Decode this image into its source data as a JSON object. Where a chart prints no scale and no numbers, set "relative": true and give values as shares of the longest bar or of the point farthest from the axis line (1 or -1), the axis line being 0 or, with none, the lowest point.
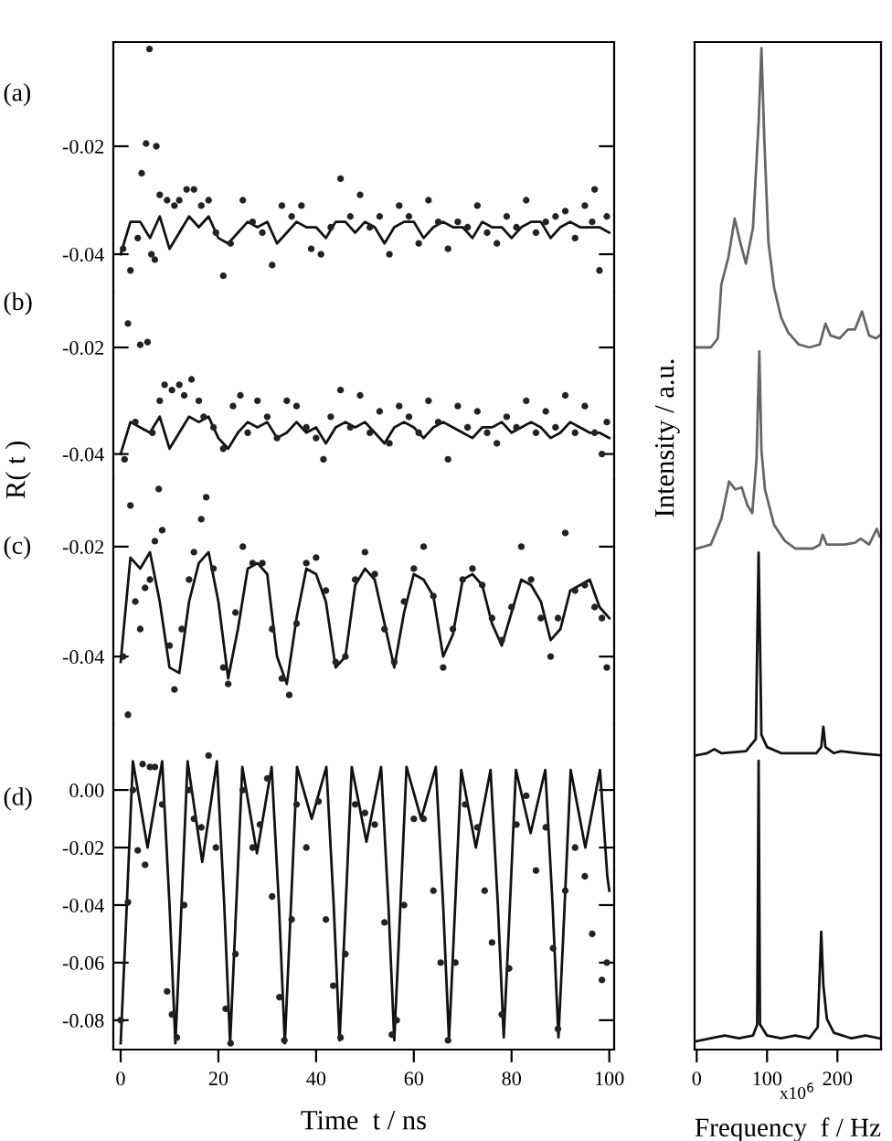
{
  "chart_data": [
    {
      "type": "scatter",
      "annotations": [
        "(a)"
      ],
      "xlim": [
        -1.5,
        101
      ],
      "ylim": [
        -0.0471,
        -0.0007
      ],
      "yticks": [
        {
          "value": -0.02,
          "label": "-0.02"
        },
        {
          "value": -0.04,
          "label": "-0.04"
        }
      ],
      "tick_labels": "y",
      "series": [
        {
          "type": "scatter",
          "marker": "circle",
          "color": "#222222",
          "x": [
            0.5,
            2,
            3.5,
            4.3,
            5.2,
            5.9,
            6.3,
            7,
            7.3,
            8,
            9.5,
            11,
            12,
            13.5,
            15,
            16.5,
            18,
            19.5,
            21,
            22.5,
            25,
            27,
            29,
            31,
            33,
            35,
            37,
            39,
            41,
            43,
            45,
            47,
            49,
            51,
            53,
            55,
            57,
            59,
            61,
            63,
            65,
            67,
            69,
            71,
            73,
            75,
            77,
            79,
            81,
            83,
            85,
            87,
            89,
            91,
            93,
            95,
            96.5,
            97,
            98,
            99.5
          ],
          "values": [
            -0.039,
            -0.043,
            -0.037,
            -0.025,
            -0.0195,
            -0.002,
            -0.04,
            -0.041,
            -0.02,
            -0.029,
            -0.03,
            -0.031,
            -0.03,
            -0.028,
            -0.028,
            -0.031,
            -0.03,
            -0.036,
            -0.044,
            -0.038,
            -0.03,
            -0.034,
            -0.036,
            -0.042,
            -0.031,
            -0.033,
            -0.031,
            -0.039,
            -0.04,
            -0.035,
            -0.026,
            -0.033,
            -0.029,
            -0.035,
            -0.033,
            -0.04,
            -0.031,
            -0.033,
            -0.038,
            -0.03,
            -0.034,
            -0.039,
            -0.034,
            -0.035,
            -0.031,
            -0.036,
            -0.038,
            -0.033,
            -0.035,
            -0.03,
            -0.036,
            -0.034,
            -0.033,
            -0.032,
            -0.037,
            -0.031,
            -0.034,
            -0.028,
            -0.043,
            -0.033
          ]
        },
        {
          "type": "line",
          "color": "#111111",
          "x": [
            0,
            2,
            4,
            6,
            8,
            10,
            12,
            14,
            16,
            18,
            20,
            22,
            24,
            26,
            28,
            30,
            32,
            34,
            36,
            38,
            40,
            42,
            44,
            46,
            48,
            50,
            52,
            54,
            56,
            58,
            60,
            62,
            64,
            66,
            68,
            70,
            72,
            74,
            76,
            78,
            80,
            82,
            84,
            86,
            88,
            90,
            92,
            94,
            96,
            98,
            100
          ],
          "values": [
            -0.04,
            -0.034,
            -0.034,
            -0.037,
            -0.033,
            -0.039,
            -0.036,
            -0.033,
            -0.035,
            -0.033,
            -0.037,
            -0.038,
            -0.036,
            -0.034,
            -0.035,
            -0.034,
            -0.038,
            -0.036,
            -0.034,
            -0.035,
            -0.035,
            -0.037,
            -0.034,
            -0.034,
            -0.036,
            -0.034,
            -0.035,
            -0.038,
            -0.035,
            -0.034,
            -0.034,
            -0.037,
            -0.035,
            -0.034,
            -0.035,
            -0.035,
            -0.037,
            -0.034,
            -0.035,
            -0.035,
            -0.037,
            -0.035,
            -0.034,
            -0.034,
            -0.037,
            -0.035,
            -0.034,
            -0.035,
            -0.035,
            -0.035,
            -0.036
          ]
        }
      ]
    },
    {
      "type": "scatter",
      "annotations": [
        "(b)"
      ],
      "ylabel": "R( t )",
      "xlim": [
        -1.5,
        101
      ],
      "ylim": [
        -0.0447,
        -0.0097
      ],
      "yticks": [
        {
          "value": -0.02,
          "label": "-0.02"
        },
        {
          "value": -0.04,
          "label": "-0.04"
        }
      ],
      "tick_labels": "y",
      "series": [
        {
          "type": "scatter",
          "marker": "circle",
          "color": "#222222",
          "x": [
            0.8,
            1.5,
            3,
            4,
            5.5,
            6.5,
            8,
            9,
            10.5,
            12,
            13,
            14.5,
            16,
            17,
            19,
            21,
            23,
            24.5,
            26,
            28,
            30,
            32,
            34,
            36,
            38,
            40,
            41.5,
            43,
            45,
            47,
            49,
            51,
            53,
            55,
            57,
            59,
            61,
            63,
            65,
            67,
            69,
            71,
            73,
            75,
            77,
            79,
            81,
            83,
            85,
            87,
            89,
            91,
            93,
            95,
            97,
            98.5,
            99.5
          ],
          "values": [
            -0.041,
            -0.0155,
            -0.034,
            -0.0195,
            -0.019,
            -0.036,
            -0.03,
            -0.027,
            -0.028,
            -0.027,
            -0.029,
            -0.026,
            -0.03,
            -0.033,
            -0.035,
            -0.039,
            -0.031,
            -0.029,
            -0.036,
            -0.03,
            -0.033,
            -0.037,
            -0.03,
            -0.031,
            -0.035,
            -0.037,
            -0.041,
            -0.033,
            -0.028,
            -0.035,
            -0.029,
            -0.036,
            -0.032,
            -0.038,
            -0.031,
            -0.033,
            -0.036,
            -0.03,
            -0.034,
            -0.041,
            -0.031,
            -0.035,
            -0.032,
            -0.036,
            -0.038,
            -0.033,
            -0.035,
            -0.03,
            -0.036,
            -0.032,
            -0.035,
            -0.029,
            -0.036,
            -0.031,
            -0.036,
            -0.04,
            -0.034
          ]
        },
        {
          "type": "line",
          "color": "#111111",
          "x": [
            0,
            2,
            4,
            6,
            8,
            10,
            12,
            14,
            16,
            18,
            20,
            22,
            24,
            26,
            28,
            30,
            32,
            34,
            36,
            38,
            40,
            42,
            44,
            46,
            48,
            50,
            52,
            54,
            56,
            58,
            60,
            62,
            64,
            66,
            68,
            70,
            72,
            74,
            76,
            78,
            80,
            82,
            84,
            86,
            88,
            90,
            92,
            94,
            96,
            98,
            100
          ],
          "values": [
            -0.04,
            -0.034,
            -0.035,
            -0.036,
            -0.033,
            -0.039,
            -0.036,
            -0.033,
            -0.034,
            -0.033,
            -0.037,
            -0.039,
            -0.036,
            -0.034,
            -0.035,
            -0.034,
            -0.037,
            -0.036,
            -0.034,
            -0.036,
            -0.035,
            -0.038,
            -0.035,
            -0.034,
            -0.035,
            -0.034,
            -0.036,
            -0.038,
            -0.035,
            -0.034,
            -0.035,
            -0.037,
            -0.035,
            -0.034,
            -0.035,
            -0.036,
            -0.037,
            -0.035,
            -0.035,
            -0.034,
            -0.036,
            -0.035,
            -0.034,
            -0.035,
            -0.037,
            -0.036,
            -0.034,
            -0.035,
            -0.036,
            -0.036,
            -0.037
          ]
        }
      ]
    },
    {
      "type": "scatter",
      "annotations": [
        "(c)"
      ],
      "xlim": [
        -1.5,
        101
      ],
      "ylim": [
        -0.0523,
        -0.0077
      ],
      "yticks": [
        {
          "value": -0.02,
          "label": "-0.02"
        },
        {
          "value": -0.04,
          "label": "-0.04"
        }
      ],
      "tick_labels": "y",
      "series": [
        {
          "type": "scatter",
          "marker": "circle",
          "color": "#222222",
          "x": [
            0.5,
            1.5,
            2,
            3,
            4,
            5,
            6,
            7,
            7.8,
            8.5,
            10,
            11,
            12.5,
            14,
            15,
            16.5,
            17.5,
            19,
            21,
            22,
            23.5,
            25,
            27,
            29,
            31,
            33,
            34.5,
            36,
            38,
            40,
            42,
            44,
            46,
            48,
            50,
            52,
            54,
            56,
            58,
            60,
            62,
            64,
            66,
            68,
            70,
            72,
            74,
            76,
            78,
            80,
            82,
            84,
            86,
            88,
            89.5,
            91,
            93,
            95,
            97,
            98.5,
            99.5
          ],
          "values": [
            -0.04,
            -0.0506,
            -0.0125,
            -0.03,
            -0.035,
            -0.0275,
            -0.026,
            -0.019,
            -0.0095,
            -0.017,
            -0.038,
            -0.046,
            -0.035,
            -0.026,
            -0.021,
            -0.015,
            -0.011,
            -0.024,
            -0.042,
            -0.045,
            -0.032,
            -0.02,
            -0.023,
            -0.023,
            -0.035,
            -0.044,
            -0.047,
            -0.034,
            -0.023,
            -0.022,
            -0.028,
            -0.041,
            -0.04,
            -0.026,
            -0.021,
            -0.025,
            -0.035,
            -0.041,
            -0.03,
            -0.024,
            -0.02,
            -0.029,
            -0.042,
            -0.035,
            -0.026,
            -0.024,
            -0.027,
            -0.033,
            -0.037,
            -0.031,
            -0.02,
            -0.026,
            -0.033,
            -0.04,
            -0.033,
            -0.0175,
            -0.028,
            -0.027,
            -0.031,
            -0.033,
            -0.042
          ]
        },
        {
          "type": "line",
          "color": "#111111",
          "x": [
            0,
            2,
            4,
            6,
            8,
            10,
            12,
            14,
            16,
            18,
            20,
            22,
            24,
            26,
            28,
            30,
            32,
            34,
            36,
            38,
            40,
            42,
            44,
            46,
            48,
            50,
            52,
            54,
            56,
            58,
            60,
            62,
            64,
            66,
            68,
            70,
            72,
            74,
            76,
            78,
            80,
            82,
            84,
            86,
            88,
            90,
            92,
            94,
            96,
            98,
            100
          ],
          "values": [
            -0.041,
            -0.022,
            -0.024,
            -0.021,
            -0.03,
            -0.042,
            -0.043,
            -0.03,
            -0.023,
            -0.021,
            -0.03,
            -0.044,
            -0.035,
            -0.024,
            -0.023,
            -0.025,
            -0.04,
            -0.045,
            -0.033,
            -0.024,
            -0.025,
            -0.03,
            -0.042,
            -0.04,
            -0.027,
            -0.024,
            -0.026,
            -0.034,
            -0.042,
            -0.032,
            -0.025,
            -0.026,
            -0.029,
            -0.04,
            -0.036,
            -0.026,
            -0.025,
            -0.027,
            -0.034,
            -0.038,
            -0.032,
            -0.026,
            -0.027,
            -0.03,
            -0.037,
            -0.035,
            -0.028,
            -0.027,
            -0.026,
            -0.031,
            -0.033
          ]
        }
      ]
    },
    {
      "type": "scatter",
      "annotations": [
        "(d)"
      ],
      "xlabel": "Time  t / ns",
      "xlim": [
        -1.5,
        101
      ],
      "ylim": [
        -0.0902,
        0.0229
      ],
      "xticks": [
        0,
        20,
        40,
        60,
        80,
        100
      ],
      "yticks": [
        {
          "value": 0,
          "label": "0.00"
        },
        {
          "value": -0.02,
          "label": "-0.02"
        },
        {
          "value": -0.04,
          "label": "-0.04"
        },
        {
          "value": -0.06,
          "label": "-0.06"
        },
        {
          "value": -0.08,
          "label": "-0.08"
        }
      ],
      "series": [
        {
          "type": "scatter",
          "marker": "circle",
          "color": "#222222",
          "x": [
            0,
            1.5,
            2.5,
            3.5,
            4.5,
            5,
            6,
            7,
            8.5,
            9.5,
            10.5,
            11.5,
            13,
            14,
            15,
            16.5,
            18,
            19.5,
            21.5,
            22.5,
            23.5,
            25,
            27,
            28.5,
            30,
            31,
            32.5,
            33.5,
            35,
            36,
            38,
            40.5,
            42,
            43.5,
            45,
            46,
            48,
            50,
            52,
            54,
            55.5,
            56.5,
            58,
            60,
            62,
            64,
            65.5,
            67,
            68.5,
            70.5,
            73,
            74.5,
            76,
            78,
            79.5,
            81,
            83,
            85,
            87,
            88.5,
            89.5,
            91,
            93,
            95,
            96.5,
            98.5,
            99.5
          ],
          "values": [
            -0.08,
            -0.039,
            0,
            -0.021,
            0.009,
            -0.026,
            0.008,
            0.008,
            -0.005,
            -0.07,
            -0.078,
            -0.086,
            -0.04,
            0,
            -0.01,
            -0.013,
            0.012,
            -0.02,
            -0.076,
            -0.088,
            -0.057,
            0,
            -0.02,
            -0.012,
            0.004,
            -0.037,
            -0.072,
            -0.087,
            -0.045,
            -0.005,
            -0.02,
            -0.004,
            -0.045,
            -0.068,
            -0.086,
            -0.057,
            -0.005,
            -0.008,
            -0.012,
            -0.046,
            -0.085,
            -0.08,
            -0.04,
            -0.01,
            -0.01,
            -0.035,
            -0.06,
            -0.087,
            -0.06,
            -0.005,
            -0.013,
            -0.035,
            -0.053,
            -0.078,
            -0.062,
            -0.012,
            -0.002,
            -0.028,
            -0.013,
            -0.055,
            -0.083,
            -0.035,
            -0.02,
            -0.03,
            -0.05,
            -0.066,
            -0.06
          ]
        },
        {
          "type": "line",
          "color": "#111111",
          "x": [
            0,
            1,
            2.5,
            5.5,
            8.5,
            10,
            11.2,
            12.2,
            13.7,
            16.7,
            19.7,
            21.2,
            22.4,
            23.4,
            24.9,
            27.9,
            30.9,
            32.4,
            33.6,
            34.6,
            36.1,
            39.1,
            42.1,
            43.6,
            44.8,
            45.8,
            47.3,
            50.3,
            53.3,
            54.8,
            56,
            57,
            58.5,
            61.5,
            64.5,
            66,
            67.2,
            68.2,
            69.7,
            72.7,
            75.7,
            77.2,
            78.4,
            79.4,
            80.9,
            83.9,
            86.9,
            88.4,
            89.6,
            90.6,
            92.1,
            95.1,
            98.1,
            99.6,
            100
          ],
          "values": [
            -0.088,
            -0.05,
            0.01,
            -0.02,
            0.01,
            -0.04,
            -0.088,
            -0.05,
            0.01,
            -0.025,
            0.01,
            -0.04,
            -0.088,
            -0.05,
            0.008,
            -0.022,
            0.008,
            -0.04,
            -0.088,
            -0.05,
            0.008,
            -0.01,
            0.008,
            -0.04,
            -0.087,
            -0.05,
            0.008,
            -0.018,
            0.008,
            -0.04,
            -0.087,
            -0.05,
            0.008,
            -0.01,
            0.008,
            -0.04,
            -0.087,
            -0.05,
            0.007,
            -0.02,
            0.007,
            -0.04,
            -0.086,
            -0.05,
            0.007,
            -0.015,
            0.007,
            -0.04,
            -0.086,
            -0.05,
            0.007,
            -0.02,
            0.007,
            -0.03,
            -0.035
          ]
        }
      ]
    },
    {
      "type": "line",
      "relative": true,
      "xlim": [
        -3,
        262
      ],
      "tick_labels": false,
      "series": [
        {
          "color": "#666666",
          "x": [
            0,
            20,
            30,
            35,
            45,
            54,
            62,
            70,
            80,
            88,
            92,
            96,
            102,
            110,
            120,
            130,
            145,
            160,
            175,
            183,
            190,
            203,
            215,
            225,
            235,
            245,
            255,
            260
          ],
          "values": [
            0,
            0,
            0.03,
            0.21,
            0.3,
            0.43,
            0.35,
            0.28,
            0.4,
            0.75,
            1.0,
            0.7,
            0.35,
            0.2,
            0.1,
            0.05,
            0.01,
            0,
            0.01,
            0.08,
            0.04,
            0.03,
            0.06,
            0.06,
            0.12,
            0.04,
            0.03,
            0.04
          ]
        }
      ]
    },
    {
      "type": "line",
      "relative": true,
      "ylabel": "Intensity / a.u.",
      "xlim": [
        -3,
        262
      ],
      "tick_labels": false,
      "series": [
        {
          "color": "#666666",
          "x": [
            0,
            20,
            35,
            46,
            55,
            64,
            72,
            79,
            85,
            89,
            92,
            97,
            110,
            125,
            140,
            165,
            175,
            179,
            185,
            210,
            225,
            233,
            245,
            256,
            260
          ],
          "values": [
            0,
            0.02,
            0.15,
            0.34,
            0.3,
            0.31,
            0.22,
            0.18,
            0.45,
            1.0,
            0.5,
            0.3,
            0.12,
            0.04,
            0,
            0,
            0.02,
            0.07,
            0.02,
            0.02,
            0.03,
            0.05,
            0.02,
            0.1,
            0.06
          ]
        }
      ]
    },
    {
      "type": "line",
      "relative": true,
      "xlim": [
        -3,
        262
      ],
      "tick_labels": false,
      "series": [
        {
          "color": "#111111",
          "x": [
            0,
            15,
            25,
            35,
            70,
            84,
            88,
            92,
            100,
            120,
            170,
            177,
            180,
            183,
            195,
            205,
            230,
            260
          ],
          "values": [
            0,
            0.01,
            0.03,
            0.01,
            0.02,
            0.08,
            1.0,
            0.1,
            0.04,
            0.01,
            0.01,
            0.04,
            0.14,
            0.04,
            0.01,
            0.02,
            0.01,
            0
          ]
        }
      ]
    },
    {
      "type": "line",
      "relative": true,
      "xlabel": "Frequency  f / Hz",
      "annotations": [
        "x10$^{6}$"
      ],
      "xlim": [
        -3,
        262
      ],
      "xticks": [
        0,
        100,
        200
      ],
      "tick_labels": "x",
      "series": [
        {
          "color": "#111111",
          "x": [
            0,
            20,
            40,
            60,
            80,
            86,
            88,
            90,
            100,
            120,
            140,
            160,
            172,
            177,
            180,
            185,
            195,
            220,
            240,
            260
          ],
          "values": [
            0,
            0.01,
            0.02,
            0.01,
            0.02,
            0.06,
            1.0,
            0.06,
            0.02,
            0.01,
            0.02,
            0.01,
            0.05,
            0.39,
            0.2,
            0.08,
            0.03,
            0.01,
            0.02,
            0.01
          ]
        }
      ]
    }
  ]
}
